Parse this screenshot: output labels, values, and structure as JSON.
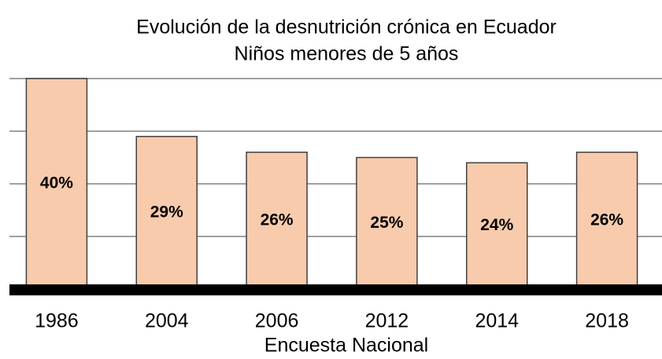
{
  "chart_data": {
    "type": "bar",
    "title": "Evolución de la desnutrición crónica en Ecuador",
    "subtitle": "Niños menores de 5 años",
    "x_label": "Encuesta Nacional",
    "categories": [
      "1986",
      "2004",
      "2006",
      "2012",
      "2014",
      "2018"
    ],
    "values": [
      40,
      29,
      26,
      25,
      24,
      26
    ],
    "value_labels": [
      "40%",
      "29%",
      "26%",
      "25%",
      "24%",
      "26%"
    ],
    "color": "#f8cbad",
    "ylim": [
      0,
      40
    ],
    "yticks": [
      10,
      20,
      30,
      40
    ],
    "grid": true
  }
}
